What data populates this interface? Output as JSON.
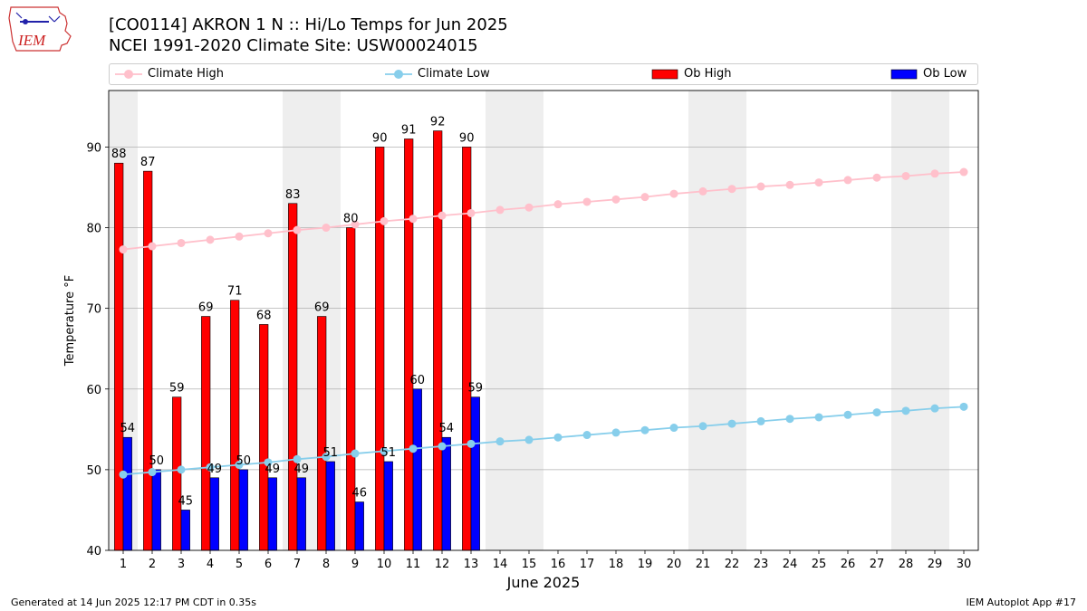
{
  "logo": {
    "text": "IEM",
    "icon": "iem-logo-icon"
  },
  "title": {
    "line1": "[CO0114] AKRON 1 N :: Hi/Lo Temps for Jun 2025",
    "line2": "NCEI 1991-2020 Climate Site: USW00024015"
  },
  "legend": {
    "climate_high": "Climate High",
    "climate_low": "Climate Low",
    "ob_high": "Ob High",
    "ob_low": "Ob Low"
  },
  "footer": {
    "left": "Generated at 14 Jun 2025 12:17 PM CDT in 0.35s",
    "right": "IEM Autoplot App #17"
  },
  "colors": {
    "ob_high": "#ff0000",
    "ob_low": "#0000ff",
    "climate_high": "#ffc0cb",
    "climate_low": "#87ceeb",
    "weekend_shade": "#eeeeee",
    "grid": "#b0b0b0"
  },
  "chart_data": {
    "type": "bar",
    "xlabel": "June 2025",
    "ylabel": "Temperature °F",
    "ylim": [
      40,
      97
    ],
    "yticks": [
      40,
      50,
      60,
      70,
      80,
      90
    ],
    "grid": "horizontal",
    "legend_position": "top",
    "days": [
      1,
      2,
      3,
      4,
      5,
      6,
      7,
      8,
      9,
      10,
      11,
      12,
      13,
      14,
      15,
      16,
      17,
      18,
      19,
      20,
      21,
      22,
      23,
      24,
      25,
      26,
      27,
      28,
      29,
      30
    ],
    "shaded_days": [
      1,
      7,
      8,
      14,
      15,
      21,
      22,
      28,
      29
    ],
    "ob_high": [
      88,
      87,
      59,
      69,
      71,
      68,
      83,
      69,
      80,
      90,
      91,
      92,
      90
    ],
    "ob_low": [
      54,
      50,
      45,
      49,
      50,
      49,
      49,
      51,
      46,
      51,
      60,
      54,
      59
    ],
    "climate_high": [
      77.3,
      77.7,
      78.1,
      78.5,
      78.9,
      79.3,
      79.7,
      80.0,
      80.4,
      80.8,
      81.1,
      81.5,
      81.8,
      82.2,
      82.5,
      82.9,
      83.2,
      83.5,
      83.8,
      84.2,
      84.5,
      84.8,
      85.1,
      85.3,
      85.6,
      85.9,
      86.2,
      86.4,
      86.7,
      86.9
    ],
    "climate_low": [
      49.4,
      49.7,
      50.0,
      50.3,
      50.6,
      50.9,
      51.3,
      51.6,
      52.0,
      52.3,
      52.6,
      52.9,
      53.2,
      53.5,
      53.7,
      54.0,
      54.3,
      54.6,
      54.9,
      55.2,
      55.4,
      55.7,
      56.0,
      56.3,
      56.5,
      56.8,
      57.1,
      57.3,
      57.6,
      57.8
    ]
  }
}
